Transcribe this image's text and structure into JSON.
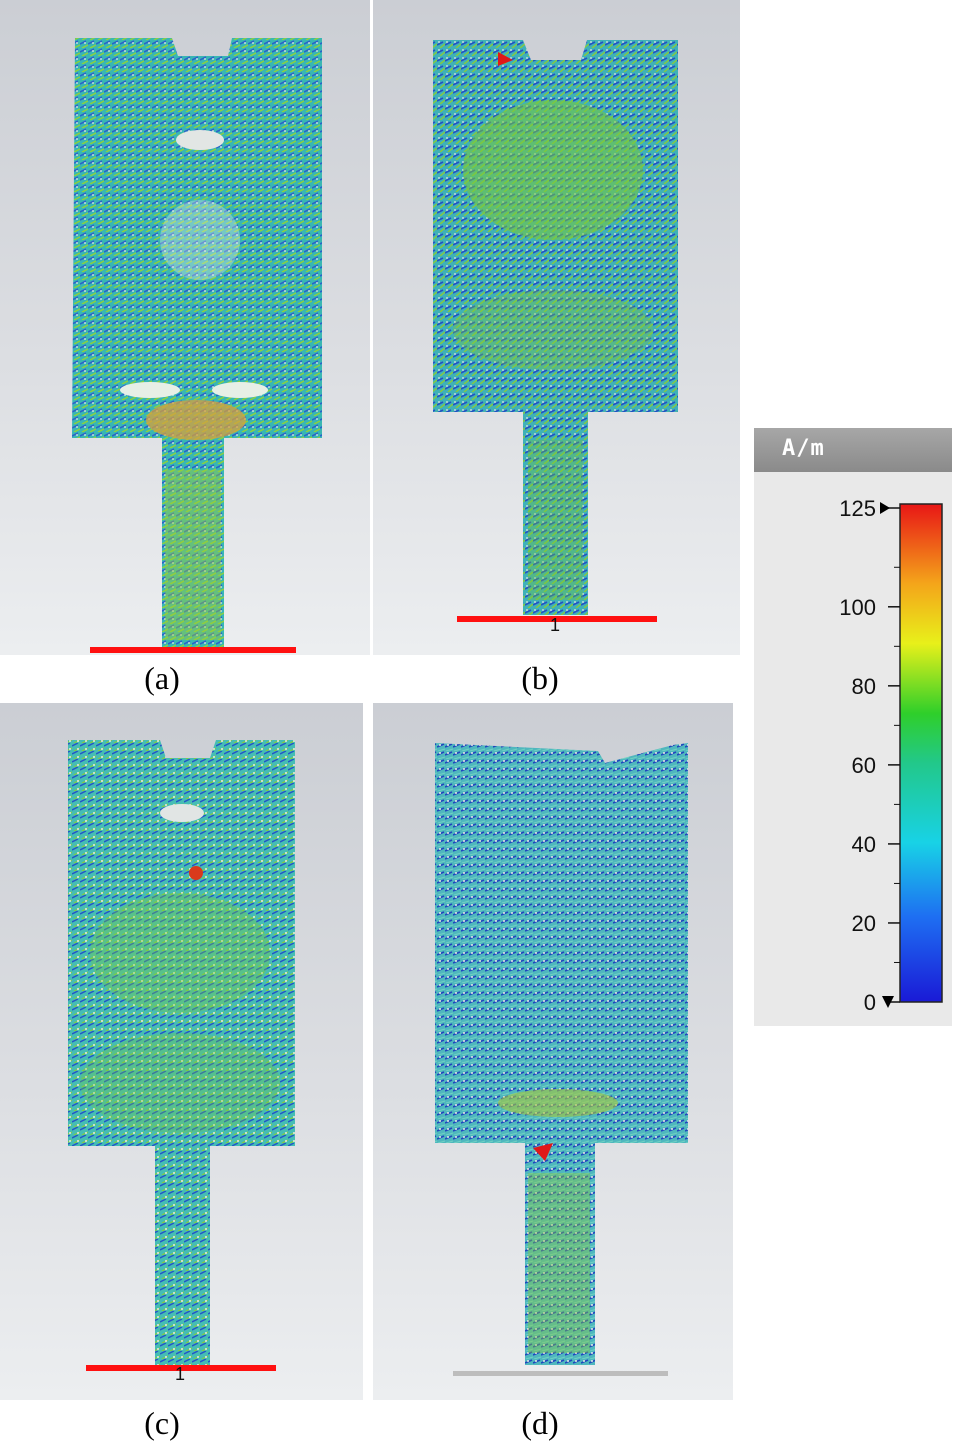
{
  "panels": [
    {
      "id": "a",
      "caption": "(a)"
    },
    {
      "id": "b",
      "caption": "(b)",
      "port_label": "1"
    },
    {
      "id": "c",
      "caption": "(c)",
      "port_label": "1"
    },
    {
      "id": "d",
      "caption": "(d)"
    }
  ],
  "legend": {
    "unit": "A/m",
    "ticks": [
      "125",
      "100",
      "80",
      "60",
      "40",
      "20",
      "0"
    ],
    "tick_values": [
      125,
      100,
      80,
      60,
      40,
      20,
      0
    ],
    "min": 0,
    "max": 125
  }
}
